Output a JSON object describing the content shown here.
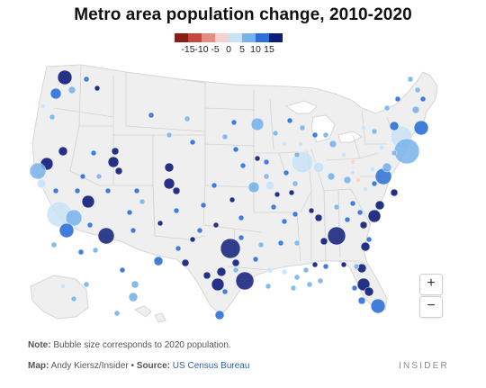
{
  "title": "Metro area population change, 2010-2020",
  "legend": {
    "bins": [
      {
        "label": "-15",
        "color": "#8b1e14"
      },
      {
        "label": "-10",
        "color": "#c7473a"
      },
      {
        "label": "-5",
        "color": "#e38d84"
      },
      {
        "label": "0",
        "color": "#f6d2ce"
      },
      {
        "label": "5",
        "color": "#c9e2f6"
      },
      {
        "label": "10",
        "color": "#77b3ea"
      },
      {
        "label": "15",
        "color": "#2c6fd6"
      },
      {
        "label": "",
        "color": "#0e1c7a"
      }
    ],
    "tick_labels": [
      "-15",
      "-10",
      "-5",
      "0",
      "5",
      "10",
      "15"
    ]
  },
  "zoom": {
    "in_label": "+",
    "out_label": "−"
  },
  "note": {
    "prefix": "Note:",
    "text": " Bubble size corresponds to 2020 population."
  },
  "credit": {
    "map_prefix": "Map:",
    "map_author": " Andy Kiersz/Insider",
    "sep": " • ",
    "source_prefix": "Source:",
    "source_text": "US Census Bureau"
  },
  "brand": "INSIDER",
  "colors": {
    "land": "#efefef",
    "state_border": "#d2d2d2",
    "outline": "#ffffff"
  }
}
